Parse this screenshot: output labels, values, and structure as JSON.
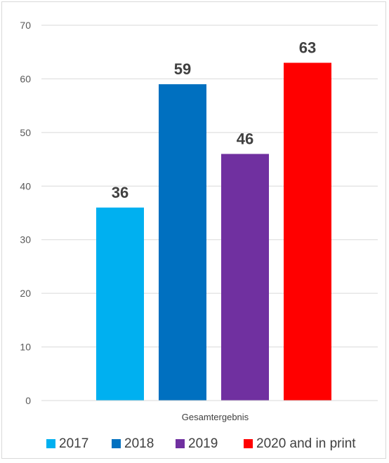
{
  "chart_data": {
    "type": "bar",
    "categories": [
      "Gesamtergebnis"
    ],
    "series": [
      {
        "name": "2017",
        "values": [
          36
        ],
        "color": "#00b0f0"
      },
      {
        "name": "2018",
        "values": [
          59
        ],
        "color": "#0070c0"
      },
      {
        "name": "2019",
        "values": [
          46
        ],
        "color": "#7030a0"
      },
      {
        "name": "2020 and in print",
        "values": [
          63
        ],
        "color": "#ff0000"
      }
    ],
    "xlabel": "",
    "ylabel": "",
    "ylim": [
      0,
      70
    ],
    "yticks": [
      0,
      10,
      20,
      30,
      40,
      50,
      60,
      70
    ],
    "grid": true,
    "legend": "bottom",
    "data_labels": true
  }
}
